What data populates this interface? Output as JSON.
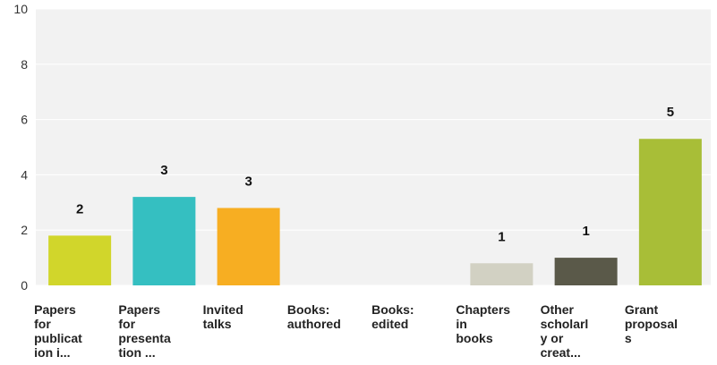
{
  "chart_data": {
    "type": "bar",
    "categories": [
      "Papers for publicat ion i...",
      "Papers for presenta tion ...",
      "Invited talks",
      "Books: authored",
      "Books: edited",
      "Chapters in books",
      "Other scholarl y or creat...",
      "Grant proposal s"
    ],
    "category_lines": [
      [
        "Papers",
        "for",
        "publicat",
        "ion i..."
      ],
      [
        "Papers",
        "for",
        "presenta",
        "tion ..."
      ],
      [
        "Invited",
        "talks"
      ],
      [
        "Books:",
        "authored"
      ],
      [
        "Books:",
        "edited"
      ],
      [
        "Chapters",
        "in",
        "books"
      ],
      [
        "Other",
        "scholarl",
        "y or",
        "creat..."
      ],
      [
        "Grant",
        "proposal",
        "s"
      ]
    ],
    "values": [
      1.8,
      3.2,
      2.8,
      0,
      0,
      0.8,
      1.0,
      5.3
    ],
    "data_labels": [
      "2",
      "3",
      "3",
      "",
      "",
      "1",
      "1",
      "5"
    ],
    "colors": [
      "#d1d62b",
      "#35bfc1",
      "#f7ae22",
      "#cccccc",
      "#cccccc",
      "#d2d1c3",
      "#5a5949",
      "#a8be37"
    ],
    "yticks": [
      "0",
      "2",
      "4",
      "6",
      "8",
      "10"
    ],
    "ylim": [
      0,
      10
    ],
    "grid": true,
    "background": "#f2f2f2",
    "gridline_color": "#ffffff",
    "title": "",
    "xlabel": "",
    "ylabel": ""
  }
}
